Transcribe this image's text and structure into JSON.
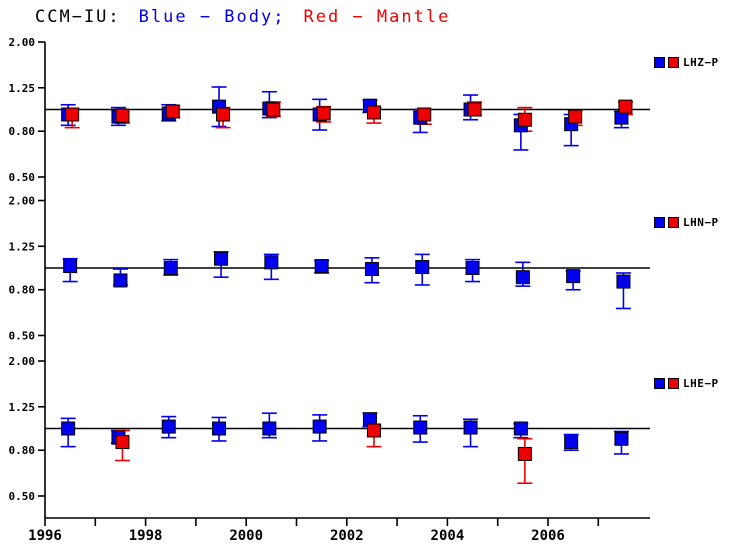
{
  "title": {
    "station": "CCM−IU:",
    "blue_label": "Blue − Body;",
    "red_label": "Red − Mantle"
  },
  "colors": {
    "body_blue": "#0000ee",
    "mantle_red": "#ee0000",
    "axis_black": "#000000",
    "background": "#ffffff"
  },
  "chart_data": {
    "type": "scatter",
    "description": "Three stacked panels of gain-ratio measurements vs time with error bars; horizontal reference line at 1.0 on a log scale.",
    "x_axis": {
      "range": [
        1996,
        2008
      ],
      "tick_years": [
        1996,
        1997,
        1998,
        1999,
        2000,
        2001,
        2002,
        2003,
        2004,
        2005,
        2006,
        2007
      ],
      "labeled_years": [
        "1996",
        "1998",
        "2000",
        "2002",
        "2004",
        "2006"
      ]
    },
    "y_axis": {
      "scale": "log",
      "range": [
        0.5,
        2.0
      ],
      "tick_values": [
        2.0,
        1.25,
        0.8,
        0.5
      ],
      "tick_labels": [
        "2.00",
        "1.25",
        "0.80",
        "0.50"
      ],
      "reference_value": 1.0
    },
    "panels": [
      {
        "legend": "LHZ−P",
        "series": [
          {
            "name": "Body",
            "color_key": "body_blue",
            "points": [
              [
                1996.5,
                0.95,
                0.85,
                1.05
              ],
              [
                1997.5,
                0.93,
                0.85,
                1.02
              ],
              [
                1998.5,
                0.96,
                0.89,
                1.05
              ],
              [
                1999.5,
                1.03,
                0.84,
                1.26
              ],
              [
                2000.5,
                1.01,
                0.92,
                1.2
              ],
              [
                2001.5,
                0.95,
                0.81,
                1.11
              ],
              [
                2002.5,
                1.04,
                0.97,
                1.1
              ],
              [
                2003.5,
                0.92,
                0.79,
                1.0
              ],
              [
                2004.5,
                1.0,
                0.9,
                1.16
              ],
              [
                2005.5,
                0.85,
                0.66,
                0.95
              ],
              [
                2006.5,
                0.86,
                0.69,
                0.95
              ],
              [
                2007.5,
                0.92,
                0.83,
                0.98
              ]
            ]
          },
          {
            "name": "Mantle",
            "color_key": "mantle_red",
            "points": [
              [
                1996.5,
                0.95,
                0.83,
                1.01
              ],
              [
                1997.5,
                0.94,
                0.87,
                1.0
              ],
              [
                1998.5,
                0.98,
                0.92,
                1.04
              ],
              [
                1999.5,
                0.95,
                0.83,
                1.02
              ],
              [
                2000.5,
                1.0,
                0.93,
                1.08
              ],
              [
                2001.5,
                0.96,
                0.88,
                1.03
              ],
              [
                2002.5,
                0.97,
                0.87,
                1.02
              ],
              [
                2003.5,
                0.95,
                0.86,
                1.0
              ],
              [
                2004.5,
                1.0,
                0.94,
                1.08
              ],
              [
                2005.5,
                0.9,
                0.8,
                1.02
              ],
              [
                2006.5,
                0.93,
                0.85,
                0.99
              ],
              [
                2007.5,
                1.03,
                0.95,
                1.08
              ]
            ]
          }
        ]
      },
      {
        "legend": "LHN−P",
        "series": [
          {
            "name": "Body",
            "color_key": "body_blue",
            "points": [
              [
                1996.5,
                1.02,
                0.87,
                1.1
              ],
              [
                1997.5,
                0.88,
                0.84,
                0.99
              ],
              [
                1998.5,
                1.0,
                0.93,
                1.09
              ],
              [
                1999.5,
                1.1,
                0.91,
                1.18
              ],
              [
                2000.5,
                1.06,
                0.89,
                1.15
              ],
              [
                2001.5,
                1.02,
                0.95,
                1.08
              ],
              [
                2002.5,
                0.99,
                0.86,
                1.11
              ],
              [
                2003.5,
                1.01,
                0.84,
                1.15
              ],
              [
                2004.5,
                1.0,
                0.87,
                1.09
              ],
              [
                2005.5,
                0.91,
                0.83,
                1.06
              ],
              [
                2006.5,
                0.92,
                0.8,
                0.97
              ],
              [
                2007.5,
                0.87,
                0.66,
                0.95
              ]
            ]
          }
        ]
      },
      {
        "legend": "LHE−P",
        "series": [
          {
            "name": "Body",
            "color_key": "body_blue",
            "points": [
              [
                1996.5,
                1.0,
                0.83,
                1.11
              ],
              [
                1997.5,
                0.91,
                0.86,
                0.98
              ],
              [
                1998.5,
                1.02,
                0.91,
                1.13
              ],
              [
                1999.5,
                1.0,
                0.88,
                1.12
              ],
              [
                2000.5,
                1.0,
                0.91,
                1.17
              ],
              [
                2001.5,
                1.02,
                0.88,
                1.15
              ],
              [
                2002.5,
                1.1,
                1.02,
                1.17
              ],
              [
                2003.5,
                1.01,
                0.87,
                1.14
              ],
              [
                2004.5,
                1.01,
                0.83,
                1.1
              ],
              [
                2005.5,
                1.0,
                0.91,
                1.05
              ],
              [
                2006.5,
                0.87,
                0.8,
                0.94
              ],
              [
                2007.5,
                0.9,
                0.77,
                0.97
              ]
            ]
          },
          {
            "name": "Mantle",
            "color_key": "mantle_red",
            "points": [
              [
                1997.5,
                0.87,
                0.72,
                0.98
              ],
              [
                2002.5,
                0.98,
                0.83,
                1.03
              ],
              [
                2005.5,
                0.77,
                0.57,
                0.9
              ]
            ]
          }
        ]
      }
    ]
  }
}
